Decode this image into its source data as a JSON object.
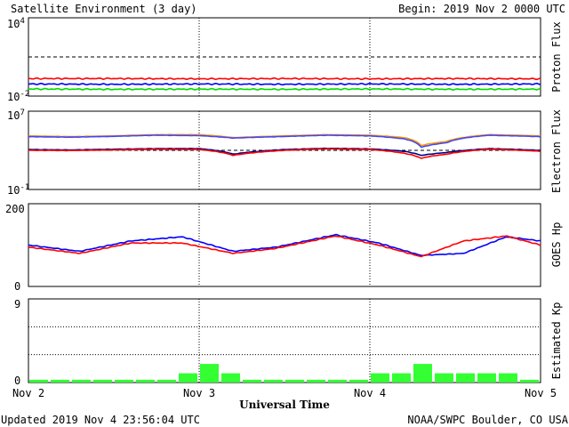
{
  "header": {
    "title": "Satellite Environment (3 day)",
    "begin": "Begin:  2019 Nov 2 0000 UTC"
  },
  "footer": {
    "updated": "Updated 2019 Nov  4 23:56:04 UTC",
    "credit": "NOAA/SWPC Boulder, CO USA"
  },
  "colors": {
    "proton_high": "#ff0000",
    "proton_mid": "#0000ff",
    "proton_low": "#00dd00",
    "electron_a": "#ff9900",
    "electron_b": "#4444ff",
    "goes_a": "#0000ff",
    "goes_b": "#ff0000",
    "kp_bar": "#33ff33"
  },
  "chart_data": [
    {
      "type": "line",
      "name": "proton-flux",
      "ylabel": "Proton Flux",
      "yscale": "log",
      "ylim": [
        0.01,
        10000
      ],
      "ytick_labels": [
        {
          "base": "10",
          "exp": "4"
        },
        {
          "base": "10",
          "exp": "-2"
        }
      ],
      "threshold": 10,
      "x": [
        0,
        0.5,
        1,
        1.5,
        2,
        2.5,
        3
      ],
      "series": [
        {
          "color": "#ff0000",
          "values": [
            0.22,
            0.22,
            0.21,
            0.22,
            0.21,
            0.22,
            0.21
          ]
        },
        {
          "color": "#0000ff",
          "values": [
            0.085,
            0.08,
            0.085,
            0.08,
            0.085,
            0.08,
            0.085
          ]
        },
        {
          "color": "#00dd00",
          "values": [
            0.035,
            0.033,
            0.034,
            0.033,
            0.035,
            0.033,
            0.034
          ]
        }
      ]
    },
    {
      "type": "line",
      "name": "electron-flux",
      "ylabel": "Electron Flux",
      "yscale": "log",
      "ylim": [
        0.1,
        10000000
      ],
      "ytick_labels": [
        {
          "base": "10",
          "exp": "7"
        },
        {
          "base": "10",
          "exp": "-1"
        }
      ],
      "threshold": 1000,
      "x": [
        0,
        0.25,
        0.5,
        0.75,
        1.0,
        1.2,
        1.5,
        1.75,
        2.0,
        2.2,
        2.3,
        2.45,
        2.7,
        3.0
      ],
      "series": [
        {
          "color": "#ff9900",
          "values": [
            30000,
            25000,
            30000,
            40000,
            40000,
            20000,
            30000,
            40000,
            35000,
            20000,
            3000,
            8000,
            40000,
            30000
          ]
        },
        {
          "color": "#4444ff",
          "values": [
            25000,
            22000,
            27000,
            35000,
            32000,
            18000,
            26000,
            35000,
            30000,
            15000,
            2000,
            6000,
            35000,
            25000
          ]
        },
        {
          "color": "#000088",
          "values": [
            1200,
            1100,
            1300,
            1500,
            1500,
            400,
            1200,
            1600,
            1400,
            800,
            300,
            600,
            1500,
            1000
          ]
        },
        {
          "color": "#ff0000",
          "values": [
            1000,
            950,
            1100,
            1300,
            1200,
            300,
            1000,
            1400,
            1200,
            500,
            150,
            400,
            1300,
            800
          ]
        }
      ]
    },
    {
      "type": "line",
      "name": "goes-hp",
      "ylabel": "GOES Hp",
      "ylim": [
        0,
        200
      ],
      "ytick_labels": [
        "200",
        "0"
      ],
      "x": [
        0,
        0.3,
        0.6,
        0.9,
        1.2,
        1.45,
        1.8,
        2.05,
        2.3,
        2.55,
        2.8,
        3.0
      ],
      "series": [
        {
          "color": "#0000ff",
          "values": [
            100,
            85,
            110,
            120,
            85,
            95,
            125,
            105,
            75,
            80,
            120,
            110
          ]
        },
        {
          "color": "#ff0000",
          "values": [
            95,
            80,
            105,
            105,
            80,
            92,
            122,
            100,
            72,
            110,
            122,
            100
          ]
        }
      ]
    },
    {
      "type": "bar",
      "name": "estimated-kp",
      "ylabel": "Estimated Kp",
      "ylim": [
        0,
        9
      ],
      "ytick_labels": [
        "9",
        "0"
      ],
      "xtick_labels": [
        "Nov 2",
        "Nov 3",
        "Nov 4",
        "Nov 5"
      ],
      "xlabel": "Universal Time",
      "values": [
        0.3,
        0.3,
        0.3,
        0.3,
        0.3,
        0.3,
        0.3,
        1,
        2,
        1,
        0.3,
        0.3,
        0.3,
        0.3,
        0.3,
        0.3,
        1,
        1,
        2,
        1,
        1,
        1,
        1,
        0.3
      ]
    }
  ]
}
